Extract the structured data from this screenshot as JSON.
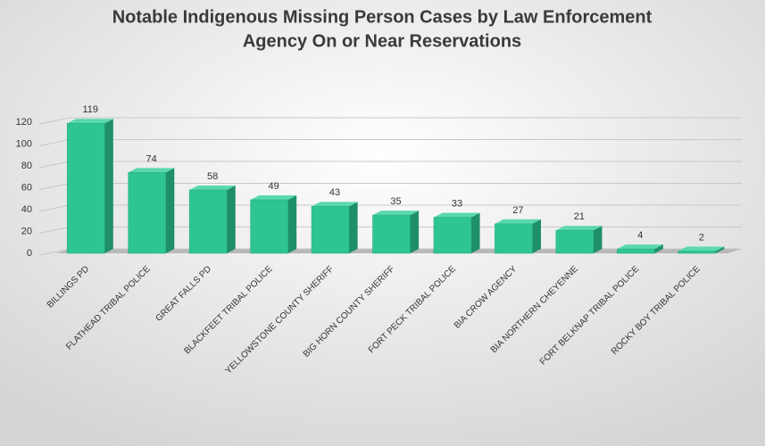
{
  "chart_data": {
    "type": "bar3d",
    "title": "Notable Indigenous Missing Person Cases by Law Enforcement",
    "subtitle": "Agency On or Near Reservations",
    "categories": [
      "BILLINGS PD",
      "FLATHEAD TRIBAL POLICE",
      "GREAT FALLS PD",
      "BLACKFEET TRIBAL POLICE",
      "YELLOWSTONE COUNTY SHERIFF",
      "BIG HORN COUNTY SHERIFF",
      "FORT PECK TRIBAL POLICE",
      "BIA CROW AGENCY",
      "BIA NORTHERN CHEYENNE",
      "FORT BELKNAP TRIBAL POLICE",
      "ROCKY BOY TRIBAL POLICE"
    ],
    "values": [
      119,
      74,
      58,
      49,
      43,
      35,
      33,
      27,
      21,
      4,
      2
    ],
    "color": "#2ec592",
    "ylim": [
      0,
      120
    ],
    "yticks": [
      0,
      20,
      40,
      60,
      80,
      100,
      120
    ],
    "grid": true
  }
}
